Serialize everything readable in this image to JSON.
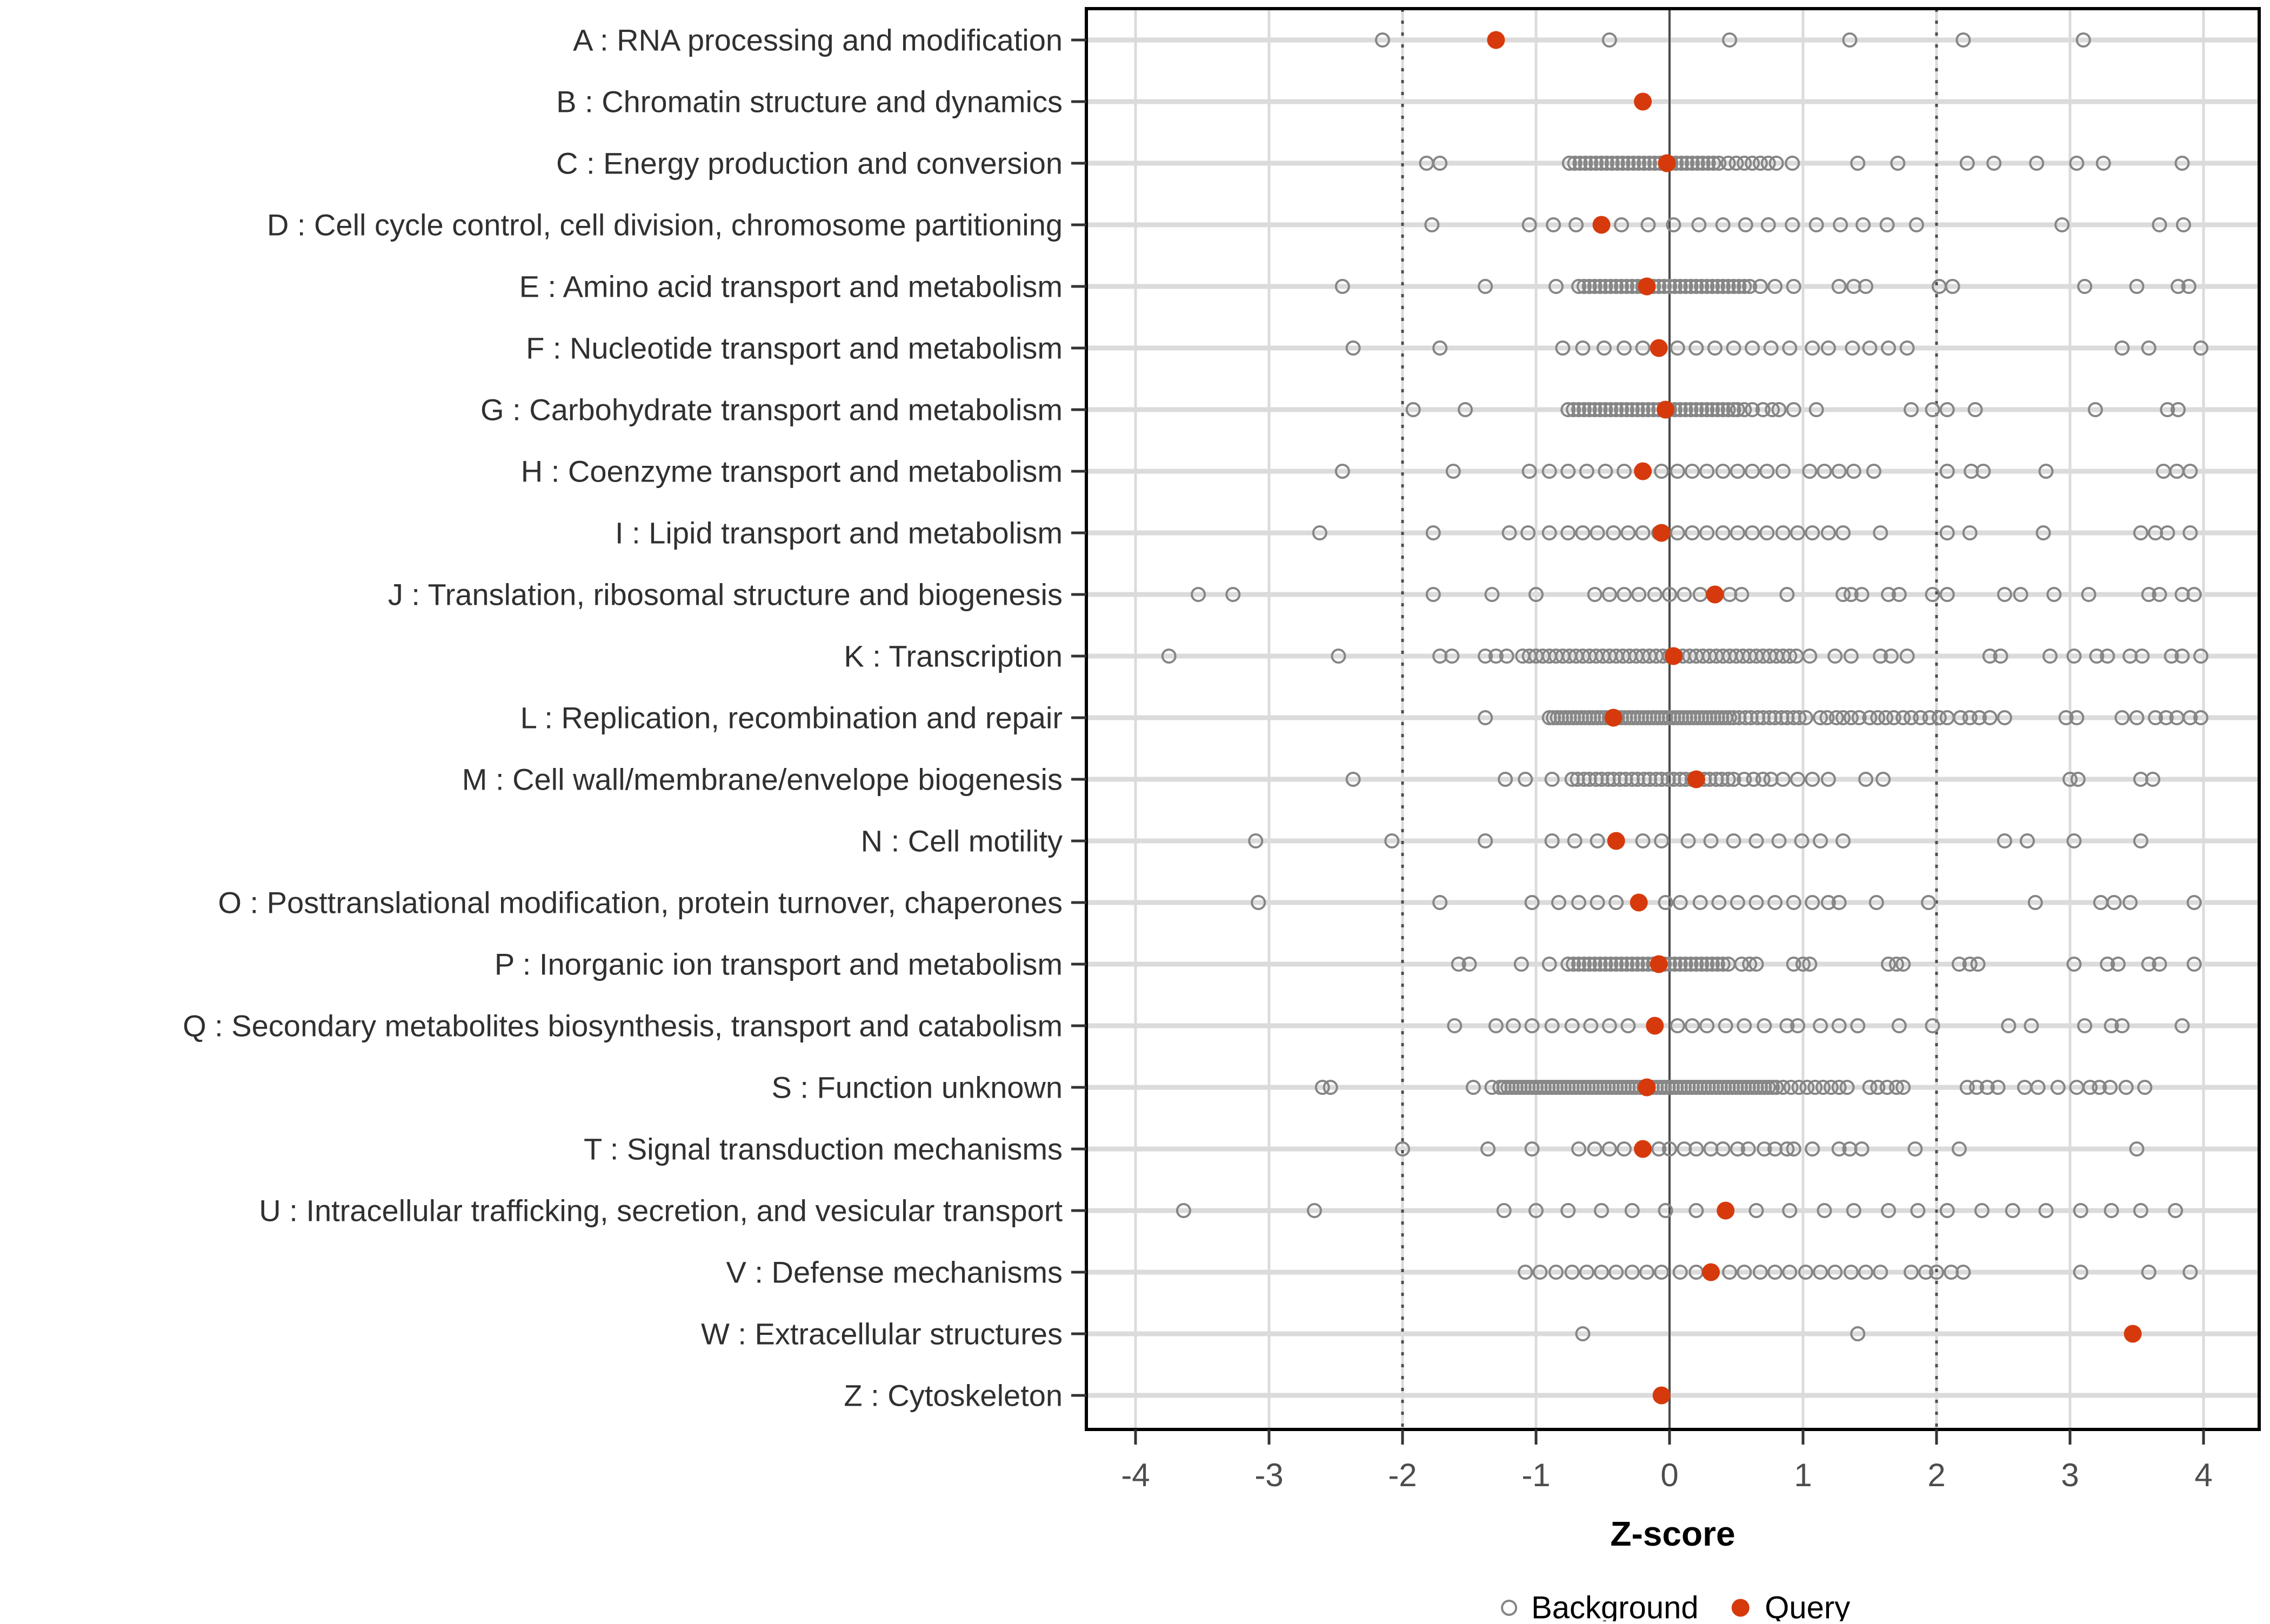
{
  "chart_data": {
    "type": "scatter",
    "title": "",
    "xlabel": "Z-score",
    "x_ticks": [
      -4,
      -3,
      -2,
      -1,
      0,
      1,
      2,
      3,
      4
    ],
    "xlim": [
      -4.35,
      4.4
    ],
    "grid": "major-only",
    "reference_lines": {
      "solid": [
        0
      ],
      "dotted": [
        -2,
        2
      ]
    },
    "legend_position": "bottom",
    "legend": [
      {
        "label": "Background",
        "marker": "open-circle"
      },
      {
        "label": "Query",
        "marker": "filled-circle"
      }
    ],
    "rows": [
      {
        "category": "A : RNA processing and modification",
        "background": [
          -2.15,
          -0.45,
          0.45,
          1.35,
          2.2,
          3.1
        ],
        "query": -1.3
      },
      {
        "category": "B : Chromatin structure and dynamics",
        "background": [],
        "query": -0.2
      },
      {
        "category": "C : Energy production and conversion",
        "background": [
          -1.82,
          -1.72,
          -0.75,
          -0.71,
          -0.67,
          -0.63,
          -0.59,
          -0.55,
          -0.51,
          -0.47,
          -0.43,
          -0.39,
          -0.35,
          -0.31,
          -0.27,
          -0.23,
          -0.19,
          -0.15,
          -0.11,
          -0.07,
          -0.03,
          0.01,
          0.05,
          0.09,
          0.13,
          0.17,
          0.21,
          0.25,
          0.29,
          0.33,
          0.37,
          0.44,
          0.5,
          0.56,
          0.62,
          0.68,
          0.74,
          0.8,
          0.92,
          1.41,
          1.71,
          2.23,
          2.43,
          2.75,
          3.05,
          3.25,
          3.84
        ],
        "query": -0.02
      },
      {
        "category": "D : Cell cycle control, cell division, chromosome partitioning",
        "background": [
          -1.78,
          -1.05,
          -0.87,
          -0.7,
          -0.36,
          -0.16,
          0.03,
          0.22,
          0.4,
          0.57,
          0.74,
          0.92,
          1.1,
          1.28,
          1.45,
          1.63,
          1.85,
          2.94,
          3.67,
          3.85
        ],
        "query": -0.51
      },
      {
        "category": "E : Amino acid transport and metabolism",
        "background": [
          -2.45,
          -1.38,
          -0.85,
          -0.68,
          -0.64,
          -0.6,
          -0.56,
          -0.52,
          -0.48,
          -0.44,
          -0.4,
          -0.36,
          -0.32,
          -0.28,
          -0.24,
          -0.2,
          -0.16,
          -0.12,
          -0.08,
          -0.04,
          0,
          0.04,
          0.08,
          0.12,
          0.16,
          0.2,
          0.24,
          0.28,
          0.32,
          0.36,
          0.4,
          0.44,
          0.48,
          0.52,
          0.56,
          0.6,
          0.68,
          0.79,
          0.93,
          1.27,
          1.38,
          1.47,
          2.02,
          2.12,
          3.11,
          3.5,
          3.81,
          3.89
        ],
        "query": -0.17
      },
      {
        "category": "F : Nucleotide transport and metabolism",
        "background": [
          -2.37,
          -1.72,
          -0.8,
          -0.65,
          -0.49,
          -0.34,
          -0.2,
          0.06,
          0.2,
          0.34,
          0.48,
          0.62,
          0.76,
          0.9,
          1.07,
          1.19,
          1.37,
          1.5,
          1.64,
          1.78,
          3.39,
          3.59,
          3.98
        ],
        "query": -0.08
      },
      {
        "category": "G : Carbohydrate transport and metabolism",
        "background": [
          -1.92,
          -1.53,
          -0.76,
          -0.72,
          -0.68,
          -0.64,
          -0.6,
          -0.56,
          -0.52,
          -0.48,
          -0.44,
          -0.4,
          -0.36,
          -0.32,
          -0.28,
          -0.24,
          -0.2,
          -0.16,
          -0.12,
          -0.08,
          -0.04,
          0,
          0.04,
          0.08,
          0.12,
          0.16,
          0.2,
          0.24,
          0.28,
          0.32,
          0.36,
          0.4,
          0.44,
          0.48,
          0.51,
          0.56,
          0.62,
          0.7,
          0.77,
          0.82,
          0.93,
          1.1,
          1.81,
          1.97,
          2.08,
          2.29,
          3.19,
          3.73,
          3.81
        ],
        "query": -0.03
      },
      {
        "category": "H : Coenzyme transport and metabolism",
        "background": [
          -2.45,
          -1.62,
          -1.05,
          -0.9,
          -0.76,
          -0.62,
          -0.48,
          -0.34,
          -0.06,
          0.06,
          0.17,
          0.28,
          0.4,
          0.51,
          0.62,
          0.73,
          0.85,
          1.05,
          1.16,
          1.27,
          1.38,
          1.53,
          2.08,
          2.26,
          2.35,
          2.82,
          3.7,
          3.8,
          3.9
        ],
        "query": -0.2
      },
      {
        "category": "I : Lipid transport and metabolism",
        "background": [
          -2.62,
          -1.77,
          -1.2,
          -1.06,
          -0.9,
          -0.76,
          -0.65,
          -0.54,
          -0.42,
          -0.31,
          -0.2,
          -0.08,
          0.06,
          0.17,
          0.28,
          0.4,
          0.51,
          0.62,
          0.73,
          0.85,
          0.96,
          1.07,
          1.19,
          1.3,
          1.58,
          2.08,
          2.25,
          2.8,
          3.53,
          3.64,
          3.73,
          3.9
        ],
        "query": -0.06
      },
      {
        "category": "J : Translation, ribosomal structure and biogenesis",
        "background": [
          -3.53,
          -3.27,
          -1.77,
          -1.33,
          -1,
          -0.56,
          -0.45,
          -0.34,
          -0.23,
          -0.11,
          0,
          0.11,
          0.23,
          0.45,
          0.54,
          0.88,
          1.3,
          1.36,
          1.44,
          1.64,
          1.72,
          1.97,
          2.08,
          2.51,
          2.63,
          2.88,
          3.14,
          3.59,
          3.67,
          3.84,
          3.93
        ],
        "query": 0.34
      },
      {
        "category": "K : Transcription",
        "background": [
          -3.75,
          -2.48,
          -1.72,
          -1.63,
          -1.38,
          -1.3,
          -1.22,
          -1.1,
          -1.05,
          -1,
          -0.95,
          -0.9,
          -0.85,
          -0.8,
          -0.75,
          -0.7,
          -0.65,
          -0.6,
          -0.55,
          -0.5,
          -0.45,
          -0.4,
          -0.35,
          -0.3,
          -0.25,
          -0.2,
          -0.15,
          -0.1,
          -0.05,
          0,
          0.05,
          0.1,
          0.15,
          0.2,
          0.25,
          0.3,
          0.35,
          0.4,
          0.45,
          0.5,
          0.55,
          0.6,
          0.65,
          0.7,
          0.75,
          0.8,
          0.85,
          0.9,
          0.95,
          1.05,
          1.24,
          1.36,
          1.58,
          1.66,
          1.78,
          2.4,
          2.48,
          2.85,
          3.03,
          3.2,
          3.28,
          3.45,
          3.54,
          3.76,
          3.84,
          3.98
        ],
        "query": 0.03
      },
      {
        "category": "L : Replication, recombination and repair",
        "background": [
          -1.38,
          -0.9,
          -0.87,
          -0.84,
          -0.81,
          -0.78,
          -0.75,
          -0.72,
          -0.69,
          -0.66,
          -0.63,
          -0.6,
          -0.57,
          -0.54,
          -0.51,
          -0.48,
          -0.45,
          -0.42,
          -0.39,
          -0.36,
          -0.33,
          -0.3,
          -0.27,
          -0.24,
          -0.21,
          -0.18,
          -0.15,
          -0.12,
          -0.09,
          -0.06,
          -0.03,
          0,
          0.03,
          0.06,
          0.09,
          0.12,
          0.15,
          0.18,
          0.21,
          0.24,
          0.27,
          0.3,
          0.33,
          0.36,
          0.39,
          0.42,
          0.45,
          0.48,
          0.52,
          0.57,
          0.61,
          0.66,
          0.7,
          0.75,
          0.79,
          0.84,
          0.88,
          0.93,
          0.97,
          1.02,
          1.13,
          1.18,
          1.25,
          1.3,
          1.36,
          1.42,
          1.5,
          1.56,
          1.62,
          1.68,
          1.75,
          1.81,
          1.88,
          1.95,
          2.02,
          2.08,
          2.18,
          2.25,
          2.32,
          2.4,
          2.51,
          2.97,
          3.05,
          3.39,
          3.5,
          3.64,
          3.72,
          3.8,
          3.9,
          3.98
        ],
        "query": -0.42
      },
      {
        "category": "M : Cell wall/membrane/envelope biogenesis",
        "background": [
          -2.37,
          -1.23,
          -1.08,
          -0.88,
          -0.73,
          -0.69,
          -0.64,
          -0.6,
          -0.55,
          -0.51,
          -0.46,
          -0.42,
          -0.37,
          -0.33,
          -0.28,
          -0.24,
          -0.19,
          -0.15,
          -0.1,
          -0.06,
          -0.01,
          0.03,
          0.08,
          0.12,
          0.17,
          0.21,
          0.26,
          0.3,
          0.35,
          0.39,
          0.44,
          0.48,
          0.56,
          0.63,
          0.7,
          0.76,
          0.85,
          0.96,
          1.07,
          1.19,
          1.47,
          1.6,
          3,
          3.06,
          3.53,
          3.62
        ],
        "query": 0.2
      },
      {
        "category": "N : Cell motility",
        "background": [
          -3.1,
          -2.08,
          -1.38,
          -0.88,
          -0.71,
          -0.54,
          -0.2,
          -0.06,
          0.14,
          0.31,
          0.48,
          0.65,
          0.82,
          0.99,
          1.13,
          1.3,
          2.51,
          2.68,
          3.03,
          3.53
        ],
        "query": -0.4
      },
      {
        "category": "O : Posttranslational modification, protein turnover, chaperones",
        "background": [
          -3.08,
          -1.72,
          -1.03,
          -0.83,
          -0.68,
          -0.54,
          -0.4,
          -0.03,
          0.08,
          0.23,
          0.37,
          0.51,
          0.65,
          0.79,
          0.93,
          1.07,
          1.19,
          1.27,
          1.55,
          1.94,
          2.74,
          3.23,
          3.33,
          3.45,
          3.93
        ],
        "query": -0.23
      },
      {
        "category": "P : Inorganic ion transport and metabolism",
        "background": [
          -1.58,
          -1.5,
          -1.11,
          -0.9,
          -0.76,
          -0.72,
          -0.68,
          -0.64,
          -0.6,
          -0.56,
          -0.52,
          -0.48,
          -0.44,
          -0.4,
          -0.36,
          -0.32,
          -0.28,
          -0.24,
          -0.2,
          -0.16,
          -0.12,
          -0.08,
          -0.04,
          0,
          0.04,
          0.08,
          0.12,
          0.16,
          0.2,
          0.24,
          0.28,
          0.32,
          0.36,
          0.4,
          0.44,
          0.54,
          0.6,
          0.65,
          0.93,
          1,
          1.05,
          1.64,
          1.7,
          1.75,
          2.17,
          2.25,
          2.31,
          3.03,
          3.28,
          3.36,
          3.59,
          3.67,
          3.93
        ],
        "query": -0.08
      },
      {
        "category": "Q : Secondary metabolites biosynthesis, transport and catabolism",
        "background": [
          -1.61,
          -1.3,
          -1.17,
          -1.03,
          -0.88,
          -0.73,
          -0.59,
          -0.45,
          -0.31,
          0.06,
          0.17,
          0.28,
          0.42,
          0.56,
          0.71,
          0.88,
          0.96,
          1.13,
          1.27,
          1.41,
          1.72,
          1.97,
          2.54,
          2.71,
          3.11,
          3.31,
          3.39,
          3.84
        ],
        "query": -0.11
      },
      {
        "category": "S : Function unknown",
        "background": [
          -2.6,
          -2.54,
          -1.47,
          -1.33,
          -1.27,
          -1.24,
          -1.21,
          -1.18,
          -1.15,
          -1.12,
          -1.09,
          -1.06,
          -1.03,
          -1,
          -0.97,
          -0.94,
          -0.91,
          -0.88,
          -0.85,
          -0.82,
          -0.79,
          -0.76,
          -0.73,
          -0.7,
          -0.67,
          -0.64,
          -0.61,
          -0.58,
          -0.55,
          -0.52,
          -0.49,
          -0.46,
          -0.43,
          -0.4,
          -0.37,
          -0.34,
          -0.31,
          -0.28,
          -0.25,
          -0.22,
          -0.19,
          -0.16,
          -0.13,
          -0.1,
          -0.07,
          -0.04,
          -0.01,
          0.02,
          0.05,
          0.08,
          0.11,
          0.14,
          0.17,
          0.2,
          0.23,
          0.26,
          0.29,
          0.32,
          0.35,
          0.38,
          0.41,
          0.44,
          0.47,
          0.5,
          0.53,
          0.56,
          0.59,
          0.62,
          0.65,
          0.68,
          0.71,
          0.74,
          0.77,
          0.8,
          0.85,
          0.91,
          0.97,
          1.03,
          1.09,
          1.15,
          1.21,
          1.27,
          1.33,
          1.5,
          1.56,
          1.63,
          1.7,
          1.75,
          2.23,
          2.3,
          2.38,
          2.46,
          2.66,
          2.76,
          2.91,
          3.05,
          3.15,
          3.22,
          3.3,
          3.42,
          3.56
        ],
        "query": -0.17
      },
      {
        "category": "T : Signal transduction mechanisms",
        "background": [
          -2,
          -1.36,
          -1.03,
          -0.68,
          -0.56,
          -0.45,
          -0.34,
          -0.08,
          0,
          0.11,
          0.2,
          0.31,
          0.4,
          0.51,
          0.59,
          0.71,
          0.79,
          0.88,
          0.93,
          1.07,
          1.27,
          1.35,
          1.44,
          1.84,
          2.17,
          3.5
        ],
        "query": -0.2
      },
      {
        "category": "U : Intracellular trafficking, secretion, and vesicular transport",
        "background": [
          -3.64,
          -2.66,
          -1.24,
          -1,
          -0.76,
          -0.51,
          -0.28,
          -0.03,
          0.2,
          0.65,
          0.9,
          1.16,
          1.38,
          1.64,
          1.86,
          2.08,
          2.34,
          2.57,
          2.82,
          3.08,
          3.31,
          3.53,
          3.79
        ],
        "query": 0.42
      },
      {
        "category": "V : Defense mechanisms",
        "background": [
          -1.08,
          -0.97,
          -0.85,
          -0.73,
          -0.62,
          -0.51,
          -0.4,
          -0.28,
          -0.17,
          -0.06,
          0.08,
          0.2,
          0.45,
          0.56,
          0.68,
          0.79,
          0.9,
          1.02,
          1.13,
          1.24,
          1.36,
          1.47,
          1.58,
          1.81,
          1.92,
          2,
          2.11,
          2.2,
          3.08,
          3.59,
          3.9
        ],
        "query": 0.31
      },
      {
        "category": "W : Extracellular structures",
        "background": [
          -0.65,
          1.41
        ],
        "query": 3.47
      },
      {
        "category": "Z : Cytoskeleton",
        "background": [],
        "query": -0.06
      }
    ]
  },
  "colors": {
    "query": "#D63A0C",
    "background_marker": "#868686",
    "grid_major": "#DBDBDB",
    "reference_line": "#4D4D4D",
    "panel_border": "#000000",
    "tick_mark": "#333333",
    "axis_text": "#4D4D4D",
    "label_text": "#303030",
    "axis_title": "#000000",
    "page_background": "#FFFFFF"
  }
}
